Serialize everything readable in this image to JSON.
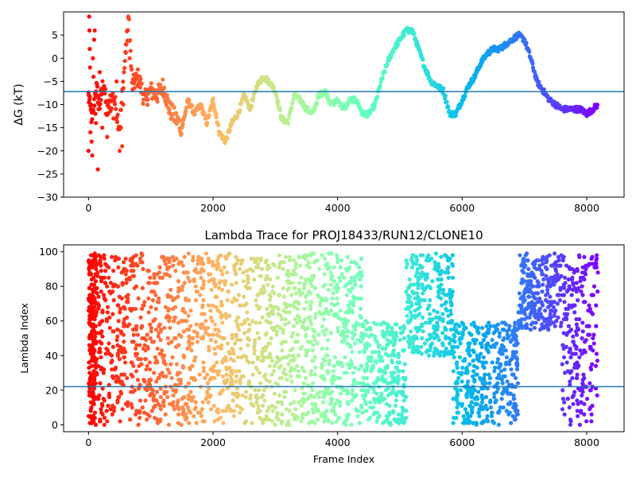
{
  "chart_data": [
    {
      "type": "scatter",
      "title": "",
      "xlabel": "",
      "ylabel": "ΔG (kT)",
      "xlim": [
        -400,
        8600
      ],
      "ylim": [
        -30,
        10
      ],
      "xticks": [
        "0",
        "2000",
        "4000",
        "6000",
        "8000"
      ],
      "xtick_values": [
        0,
        2000,
        4000,
        6000,
        8000
      ],
      "yticks": [
        "5",
        "0",
        "−5",
        "−10",
        "−15",
        "−20",
        "−25",
        "−30"
      ],
      "ytick_values": [
        5,
        0,
        -5,
        -10,
        -15,
        -20,
        -25,
        -30
      ],
      "hline": -7.2,
      "hline_color": "#1f77b4",
      "colormap": "rainbow (red at frame 0 → violet at final frame)",
      "grid": false,
      "trace": {
        "x": [
          0,
          60,
          120,
          180,
          240,
          300,
          400,
          500,
          600,
          650,
          700,
          800,
          900,
          1000,
          1100,
          1200,
          1300,
          1400,
          1500,
          1600,
          1700,
          1800,
          1900,
          2000,
          2100,
          2200,
          2300,
          2400,
          2500,
          2600,
          2700,
          2800,
          2900,
          3000,
          3100,
          3200,
          3300,
          3400,
          3500,
          3600,
          3700,
          3800,
          3900,
          4000,
          4100,
          4200,
          4300,
          4400,
          4500,
          4600,
          4700,
          4800,
          4900,
          5000,
          5100,
          5200,
          5300,
          5400,
          5500,
          5600,
          5700,
          5800,
          5900,
          6000,
          6100,
          6200,
          6300,
          6400,
          6500,
          6600,
          6700,
          6800,
          6900,
          7000,
          7100,
          7200,
          7300,
          7400,
          7500,
          7600,
          7700,
          7800,
          7900,
          8000,
          8100,
          8180
        ],
        "y": [
          -8,
          -14,
          -6,
          -10,
          -5,
          -12,
          -8,
          -15,
          2,
          8,
          -6,
          -4,
          -9,
          -7,
          -8,
          -6,
          -11,
          -13,
          -15,
          -9,
          -12,
          -10,
          -14,
          -9,
          -16,
          -18,
          -14,
          -12,
          -8,
          -11,
          -6,
          -4,
          -5,
          -7,
          -13,
          -14,
          -8,
          -9,
          -11,
          -12,
          -8,
          -7,
          -10,
          -9,
          -11,
          -9,
          -9,
          -12,
          -12,
          -10,
          -5,
          -1,
          2,
          4,
          6,
          6,
          2,
          -2,
          -5,
          -6,
          -7,
          -12,
          -12,
          -9,
          -6,
          -4,
          -1,
          1,
          2,
          2,
          3,
          4,
          5,
          4,
          0,
          -5,
          -7,
          -9,
          -10,
          -11,
          -11,
          -11,
          -11,
          -12,
          -11,
          -10
        ],
        "early_scatter_x": [
          0,
          5,
          10,
          15,
          20,
          25,
          30,
          40,
          50,
          60,
          70,
          80,
          90,
          100,
          110,
          120,
          130,
          140,
          150,
          160,
          180,
          200,
          220,
          250,
          280,
          300,
          350,
          400,
          450,
          500,
          520,
          540,
          560,
          600,
          620,
          640,
          660
        ],
        "early_scatter_y": [
          -20,
          -8,
          9,
          6,
          2,
          -2,
          -16,
          -10,
          -18,
          -21,
          0,
          -4,
          4,
          6,
          -12,
          -14,
          -8,
          -6,
          -24,
          -11,
          -3,
          -9,
          -15,
          -6,
          -12,
          -17,
          -8,
          -13,
          -5,
          -20,
          -15,
          -19,
          -10,
          3,
          6,
          9,
          0
        ]
      }
    },
    {
      "type": "scatter",
      "title": "Lambda Trace for PROJ18433/RUN12/CLONE10",
      "xlabel": "Frame Index",
      "ylabel": "Lambda Index",
      "xlim": [
        -400,
        8600
      ],
      "ylim": [
        -4,
        104
      ],
      "xticks": [
        "0",
        "2000",
        "4000",
        "6000",
        "8000"
      ],
      "xtick_values": [
        0,
        2000,
        4000,
        6000,
        8000
      ],
      "yticks": [
        "0",
        "20",
        "40",
        "60",
        "80",
        "100"
      ],
      "ytick_values": [
        0,
        20,
        40,
        60,
        80,
        100
      ],
      "hline": 22,
      "hline_color": "#1f77b4",
      "colormap": "rainbow (red at frame 0 → violet at final frame)",
      "grid": false,
      "frames": 8180,
      "band_regions": [
        {
          "x_start": 0,
          "x_end": 4400,
          "y_range": [
            0,
            99
          ],
          "note": "spread across all lambda values"
        },
        {
          "x_start": 4400,
          "x_end": 5100,
          "y_range": [
            0,
            60
          ]
        },
        {
          "x_start": 5100,
          "x_end": 5850,
          "y_range": [
            40,
            99
          ]
        },
        {
          "x_start": 5850,
          "x_end": 6900,
          "y_range": [
            0,
            60
          ]
        },
        {
          "x_start": 6900,
          "x_end": 7600,
          "y_range": [
            55,
            99
          ]
        },
        {
          "x_start": 7600,
          "x_end": 8180,
          "y_range": [
            0,
            99
          ]
        }
      ]
    }
  ]
}
